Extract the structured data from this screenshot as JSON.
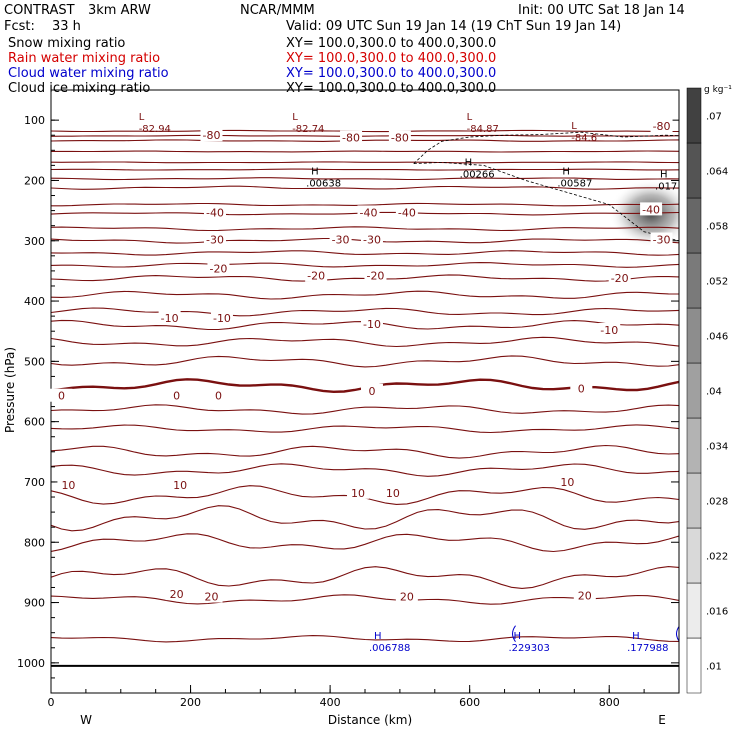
{
  "header": {
    "app": "CONTRAST",
    "model": "3km ARW",
    "org": "NCAR/MMM",
    "init": "Init: 00 UTC Sat 18 Jan 14",
    "fcst_label": "Fcst:",
    "fcst_value": "33 h",
    "valid": "Valid: 09 UTC Sun 19 Jan 14 (19 ChT Sun 19 Jan 14)"
  },
  "fields": [
    {
      "name": "Snow mixing ratio",
      "xy": "XY= 100.0,300.0 to 400.0,300.0",
      "color": "#000000"
    },
    {
      "name": "Rain water mixing ratio",
      "xy": "XY= 100.0,300.0 to 400.0,300.0",
      "color": "#d40000"
    },
    {
      "name": "Cloud water mixing ratio",
      "xy": "XY= 100.0,300.0 to 400.0,300.0",
      "color": "#0000cc"
    },
    {
      "name": "Cloud ice mixing ratio",
      "xy": "XY= 100.0,300.0 to 400.0,300.0",
      "color": "#000000"
    }
  ],
  "chart_data": {
    "type": "contour",
    "xlabel": "Distance (km)",
    "ylabel": "Pressure (hPa)",
    "xlim": [
      0,
      900
    ],
    "ylim": [
      1050,
      50
    ],
    "x_ticks": [
      0,
      200,
      400,
      600,
      800
    ],
    "y_ticks": [
      100,
      200,
      300,
      400,
      500,
      600,
      700,
      800,
      900,
      1000
    ],
    "x_end_labels": {
      "left": "W",
      "right": "E"
    },
    "colorbar": {
      "unit": "g kg⁻¹",
      "levels": [
        ".01",
        ".016",
        ".022",
        ".028",
        ".034",
        ".04",
        ".046",
        ".052",
        ".058",
        ".064",
        ".07"
      ]
    },
    "temperature_contours": [
      {
        "level": -80,
        "labels": [
          "-80",
          "-80",
          "-80",
          "-80"
        ]
      },
      {
        "level": -40,
        "labels": [
          "-40",
          "-40",
          "-40",
          "-40"
        ]
      },
      {
        "level": -30,
        "labels": [
          "-30",
          "-30",
          "-30",
          "-30"
        ]
      },
      {
        "level": -20,
        "labels": [
          "-20",
          "-20",
          "-20",
          "-20"
        ]
      },
      {
        "level": -10,
        "labels": [
          "-10",
          "-10",
          "-10",
          "-10"
        ]
      },
      {
        "level": 0,
        "labels": [
          "0",
          "0",
          "0",
          "0",
          "0"
        ]
      },
      {
        "level": 10,
        "labels": [
          "10",
          "10",
          "10",
          "10",
          "10"
        ]
      },
      {
        "level": 20,
        "labels": [
          "20",
          "20",
          "20",
          "20"
        ]
      }
    ],
    "extrema": [
      {
        "type": "L",
        "value": "-82.94",
        "x": 140,
        "p": 110
      },
      {
        "type": "L",
        "value": "-82.74",
        "x": 360,
        "p": 110
      },
      {
        "type": "L",
        "value": "-84.87",
        "x": 610,
        "p": 110
      },
      {
        "type": "L",
        "value": "-84.6",
        "x": 760,
        "p": 125
      },
      {
        "type": "H",
        "value": ".00638",
        "x": 380,
        "p": 200
      },
      {
        "type": "H",
        "value": ".00266",
        "x": 600,
        "p": 185
      },
      {
        "type": "H",
        "value": ".00587",
        "x": 740,
        "p": 200
      },
      {
        "type": "H",
        "value": ".017",
        "x": 880,
        "p": 205
      },
      {
        "type": "H",
        "value": ".006788",
        "x": 470,
        "p": 970
      },
      {
        "type": "H",
        "value": ".229303",
        "x": 670,
        "p": 970
      },
      {
        "type": "H",
        "value": ".177988",
        "x": 840,
        "p": 970
      }
    ],
    "grid": false
  }
}
